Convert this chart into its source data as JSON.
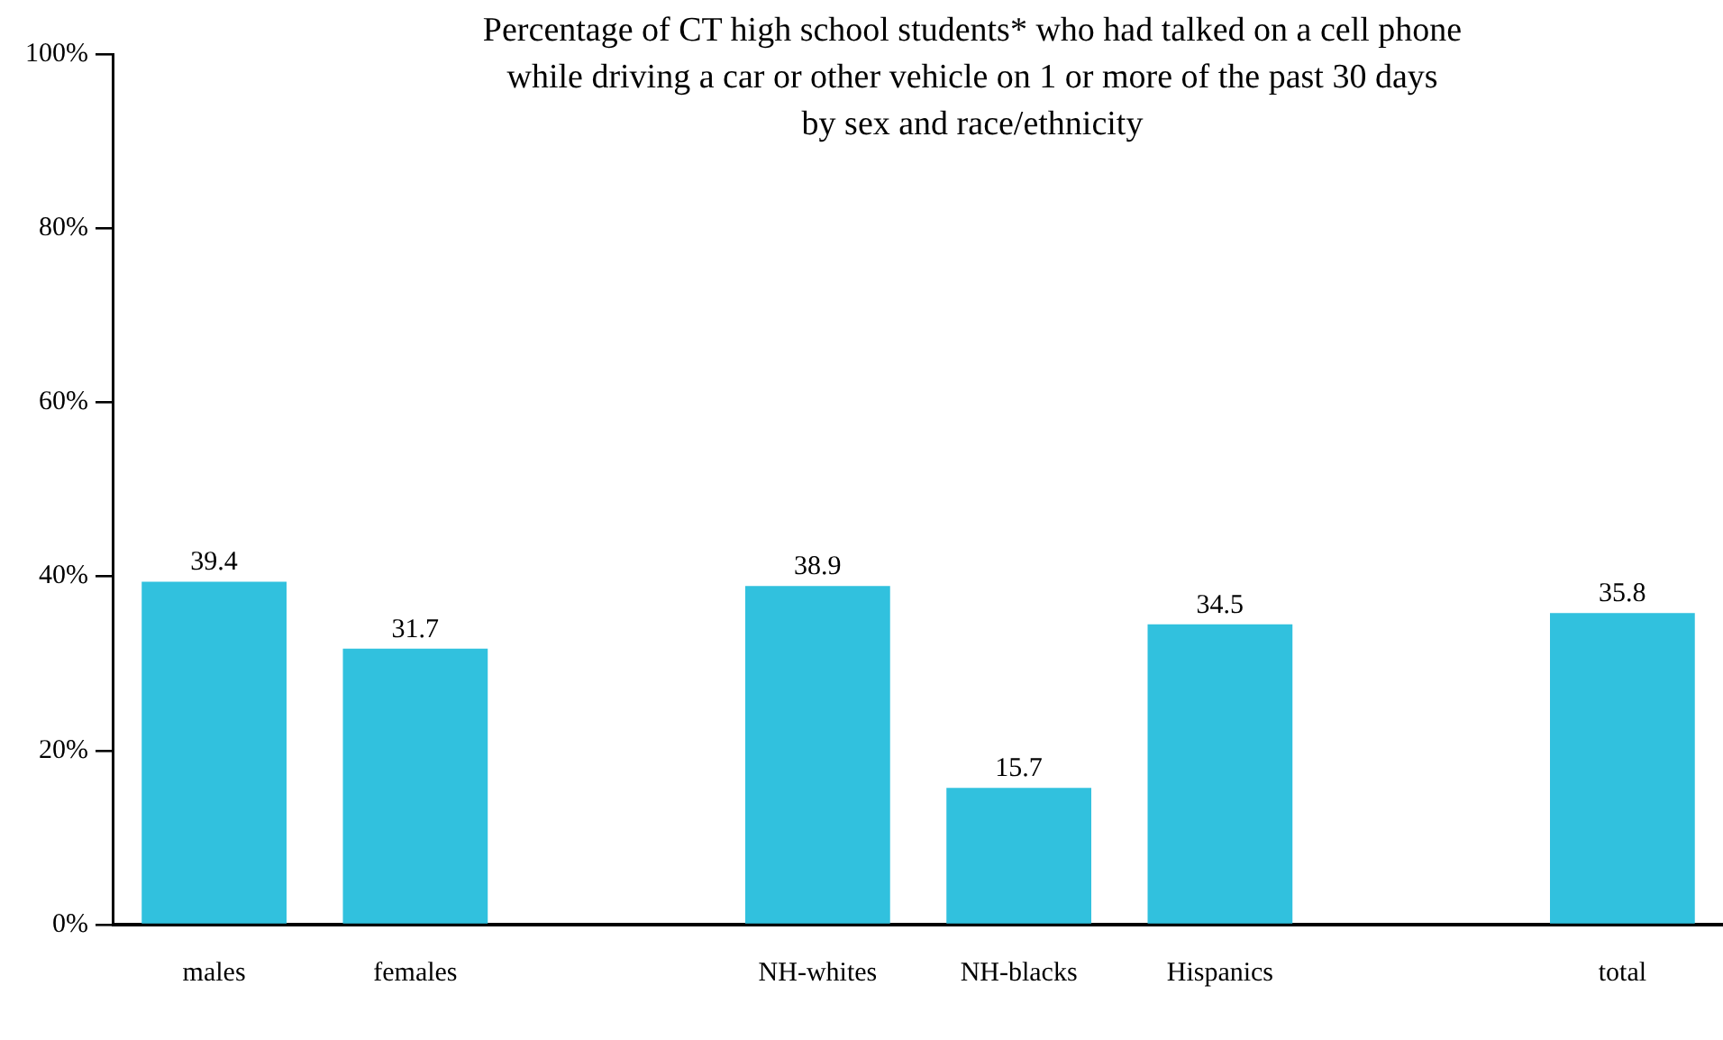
{
  "chart_data": {
    "type": "bar",
    "title": "Percentage of CT high school students* who had talked on a cell phone\nwhile driving a car or other vehicle on 1 or more of the past 30 days\nby sex and race/ethnicity",
    "categories": [
      "males",
      "females",
      null,
      "NH-whites",
      "NH-blacks",
      "Hispanics",
      null,
      "total"
    ],
    "values": [
      39.4,
      31.7,
      null,
      38.9,
      15.7,
      34.5,
      null,
      35.8
    ],
    "color": "#31c1de",
    "ylim": [
      0,
      100
    ],
    "yticks": [
      {
        "value": 0,
        "label": "0%"
      },
      {
        "value": 20,
        "label": "20%"
      },
      {
        "value": 40,
        "label": "40%"
      },
      {
        "value": 60,
        "label": "60%"
      },
      {
        "value": 80,
        "label": "80%"
      },
      {
        "value": 100,
        "label": "100%"
      }
    ],
    "data_labels": true,
    "grid": false,
    "legend": false
  }
}
